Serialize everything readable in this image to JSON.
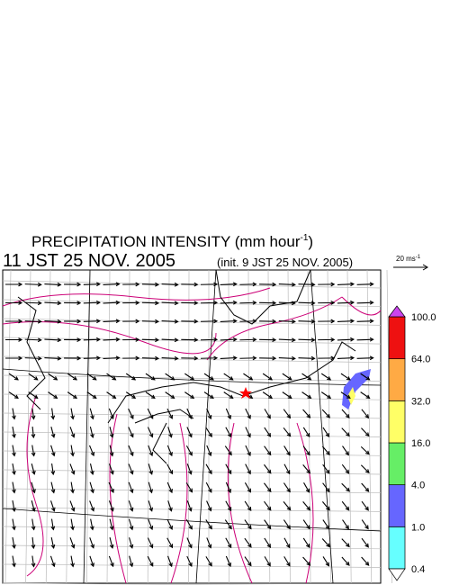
{
  "header": {
    "title": "PRECIPITATION INTENSITY (mm hour",
    "title_exponent": "-1",
    "title_close": ")",
    "valid_time": "11 JST 25 NOV. 2005",
    "init_time": "(init. 9 JST 25 NOV. 2005)"
  },
  "reference_vector": {
    "label": "20 ms",
    "label_exponent": "-1"
  },
  "colorbar": {
    "labels": [
      "0.4",
      "1.0",
      "4.0",
      "16.0",
      "32.0",
      "64.0",
      "100.0"
    ],
    "colors": [
      "#66ffff",
      "#6666ff",
      "#66ee66",
      "#ffff66",
      "#ffaa44",
      "#ee1111"
    ],
    "over_color": "#cc44ee",
    "under_color": "#ffffff"
  }
}
